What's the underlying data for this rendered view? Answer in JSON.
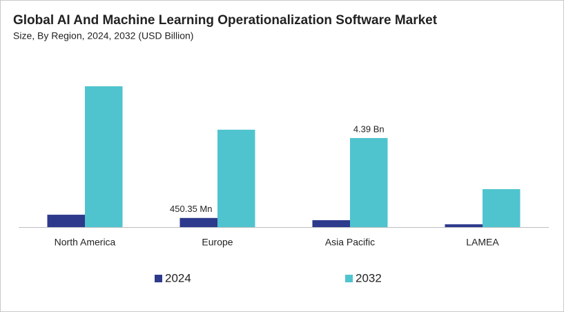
{
  "chart_data": {
    "type": "bar",
    "title": "Global AI And Machine Learning Operationalization Software Market",
    "subtitle": "Size, By Region, 2024, 2032 (USD Billion)",
    "categories": [
      "North America",
      "Europe",
      "Asia Pacific",
      "LAMEA"
    ],
    "series": [
      {
        "name": "2024",
        "color": "#2e3a8c",
        "values": [
          0.61,
          0.45035,
          0.34,
          0.14
        ],
        "value_labels": [
          null,
          "450.35 Mn",
          null,
          null
        ]
      },
      {
        "name": "2032",
        "color": "#4fc4cf",
        "values": [
          6.94,
          4.8,
          4.39,
          1.87
        ],
        "value_labels": [
          null,
          null,
          "4.39 Bn",
          null
        ]
      }
    ]
  }
}
